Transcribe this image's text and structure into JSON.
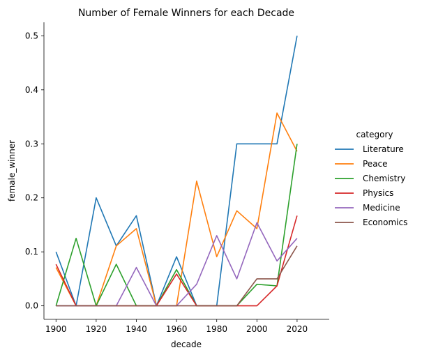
{
  "chart_data": {
    "type": "line",
    "title": "Number of Female Winners for each Decade",
    "xlabel": "decade",
    "ylabel": "female_winner",
    "x": [
      1900,
      1910,
      1920,
      1930,
      1940,
      1950,
      1960,
      1970,
      1980,
      1990,
      2000,
      2010,
      2020
    ],
    "xlim": [
      1894,
      2036
    ],
    "ylim": [
      -0.025,
      0.525
    ],
    "xticks": [
      "1900",
      "1920",
      "1940",
      "1960",
      "1980",
      "2000",
      "2020"
    ],
    "yticks": [
      "0.0",
      "0.1",
      "0.2",
      "0.3",
      "0.4",
      "0.5"
    ],
    "grid": false,
    "legend": {
      "title": "category",
      "placement": "right"
    },
    "series": [
      {
        "name": "Literature",
        "color": "#1f77b4",
        "values": [
          0.1,
          0.0,
          0.2,
          0.111,
          0.167,
          0.0,
          0.091,
          0.0,
          0.0,
          0.3,
          0.3,
          0.3,
          0.5
        ]
      },
      {
        "name": "Peace",
        "color": "#ff7f0e",
        "values": [
          0.071,
          0.0,
          0.0,
          0.111,
          0.143,
          0.0,
          0.0,
          0.231,
          0.091,
          0.176,
          0.143,
          0.357,
          0.286
        ]
      },
      {
        "name": "Chemistry",
        "color": "#2ca02c",
        "values": [
          0.0,
          0.125,
          0.0,
          0.077,
          0.0,
          0.0,
          0.067,
          0.0,
          0.0,
          0.0,
          0.04,
          0.037,
          0.3
        ]
      },
      {
        "name": "Physics",
        "color": "#d62728",
        "values": [
          0.077,
          0.0,
          0.0,
          0.0,
          0.0,
          0.0,
          0.059,
          0.0,
          0.0,
          0.0,
          0.0,
          0.037,
          0.167
        ]
      },
      {
        "name": "Medicine",
        "color": "#9467bd",
        "values": [
          0.0,
          0.0,
          0.0,
          0.0,
          0.071,
          0.0,
          0.0,
          0.04,
          0.13,
          0.05,
          0.154,
          0.083,
          0.125
        ]
      },
      {
        "name": "Economics",
        "color": "#8c564b",
        "values": [
          0.0,
          0.0,
          0.0,
          0.0,
          0.0,
          0.0,
          0.0,
          0.0,
          0.0,
          0.0,
          0.05,
          0.05,
          0.111
        ]
      }
    ]
  }
}
